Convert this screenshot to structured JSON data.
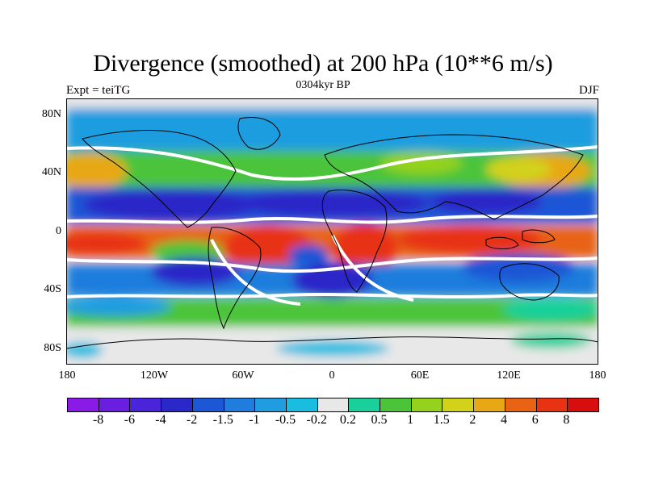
{
  "title": "Divergence (smoothed) at 200 hPa (10**6 m/s)",
  "subtitle": {
    "left": "Expt = teiTG",
    "center": "0304kyr BP",
    "right": "DJF"
  },
  "lat_labels": [
    "80N",
    "40N",
    "0",
    "40S",
    "80S"
  ],
  "lon_labels": [
    "180",
    "120W",
    "60W",
    "0",
    "60E",
    "120E",
    "180"
  ],
  "colorbar": {
    "labels": [
      "-8",
      "-6",
      "-4",
      "-2",
      "-1.5",
      "-1",
      "-0.5",
      "-0.2",
      "0.2",
      "0.5",
      "1",
      "1.5",
      "2",
      "4",
      "6",
      "8"
    ],
    "colors": [
      "#8a1be6",
      "#6a1ee0",
      "#4a24d8",
      "#2a28c8",
      "#1c57d6",
      "#1f7ddd",
      "#1f9de0",
      "#19bde0",
      "#e8e8e8",
      "#19d09a",
      "#4cc43a",
      "#94d21e",
      "#d2d21a",
      "#e8a816",
      "#e86414",
      "#e83212",
      "#d80e0e"
    ]
  },
  "palette": {
    "land_line": "#000000",
    "neutral": "#e8e8e8",
    "white_contour": "#ffffff"
  }
}
